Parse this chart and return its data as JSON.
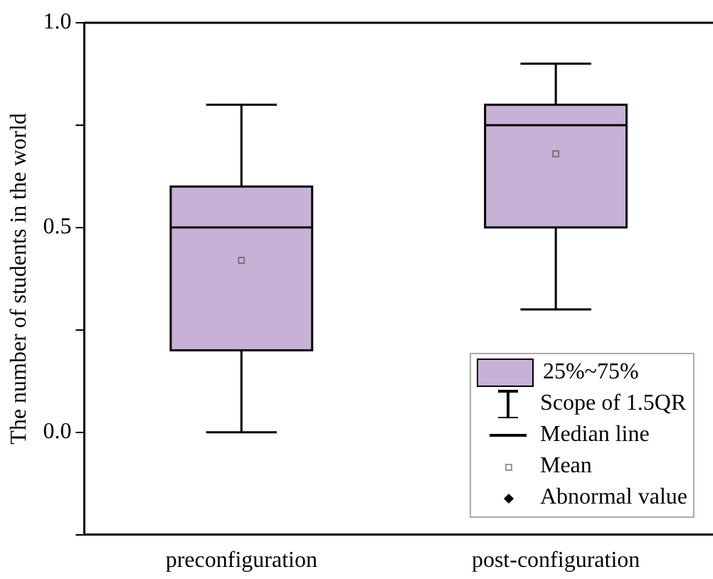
{
  "chart_data": {
    "type": "box",
    "ylabel": "The number of students in the world",
    "categories": [
      "preconfiguration",
      "post-configuration"
    ],
    "series": [
      {
        "name": "25%~75%",
        "color": "#c8b0d6",
        "boxes": [
          {
            "low": 0,
            "q1": 0.2,
            "median": 0.5,
            "q3": 0.6,
            "high": 0.8,
            "mean": 0.42
          },
          {
            "low": 0.3,
            "q1": 0.5,
            "median": 0.75,
            "q3": 0.8,
            "high": 0.9,
            "mean": 0.68
          }
        ]
      }
    ],
    "ylim": [
      -0.25,
      1.0
    ],
    "yticks": [
      {
        "value": -0.25,
        "label": null
      },
      {
        "value": 0,
        "label": "0.0"
      },
      {
        "value": 0.25,
        "label": null
      },
      0.5,
      {
        "value": 0.75,
        "label": null
      },
      {
        "value": 1,
        "label": "1.0"
      }
    ],
    "legend": "bottom right",
    "annotations": [
      "Scope of 1.5QR",
      "Median line",
      "Mean",
      "Abnormal value"
    ],
    "grid": false
  }
}
